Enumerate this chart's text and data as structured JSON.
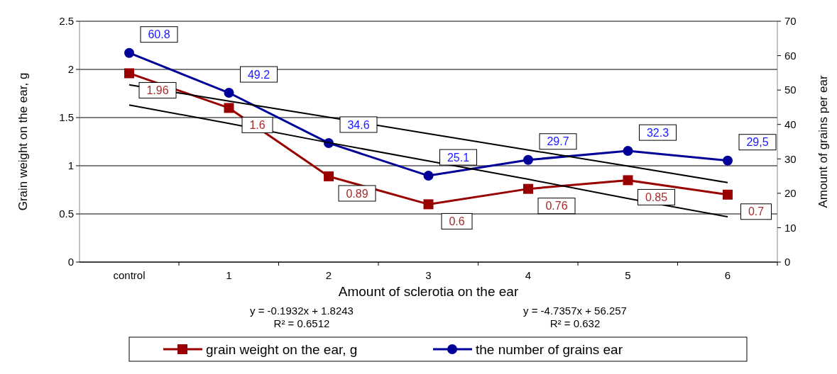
{
  "chart_data": {
    "type": "line",
    "xlabel": "Amount of sclerotia on the ear",
    "ylabel": "Grain weight on the ear, g",
    "y2label": "Amount of grains per ear",
    "categories": [
      "control",
      "1",
      "2",
      "3",
      "4",
      "5",
      "6"
    ],
    "series": [
      {
        "name": "grain weight on the ear, g",
        "color": "#990000",
        "values": [
          1.96,
          1.6,
          0.89,
          0.6,
          0.76,
          0.85,
          0.7
        ],
        "value_labels": [
          "1.96",
          "1.6",
          "0.89",
          "0.6",
          "0.76",
          "0.85",
          "0.7"
        ],
        "marker": "square"
      },
      {
        "name": "the number of grains ear",
        "color": "#000099",
        "axis": "y2",
        "values": [
          60.8,
          49.2,
          34.6,
          25.1,
          29.7,
          32.3,
          29.5
        ],
        "value_labels": [
          "60.8",
          "49.2",
          "34.6",
          "25.1",
          "29.7",
          "32.3",
          "29,5"
        ],
        "marker": "circle"
      },
      {
        "type": "line",
        "color": "#000000",
        "values": [
          1.63,
          1.44,
          1.24,
          1.05,
          0.86,
          0.66,
          0.47
        ],
        "marker": "none"
      },
      {
        "type": "line",
        "color": "#000000",
        "axis": "y2",
        "values": [
          51.5,
          46.8,
          42.1,
          37.3,
          32.6,
          27.9,
          23.1
        ],
        "marker": "none"
      }
    ],
    "ylim": [
      0,
      2.5
    ],
    "yticks": [
      0,
      0.5,
      1,
      1.5,
      2,
      2.5
    ],
    "y2lim": [
      0,
      70
    ],
    "y2ticks": [
      0,
      10,
      20,
      30,
      40,
      50,
      60,
      70
    ],
    "grid": "y",
    "legend": "bottom",
    "annotations": [
      "y = -0.1932x + 1.8243\nR² = 0.6512",
      "y = -4.7357x + 56.257\nR² = 0.632"
    ]
  }
}
